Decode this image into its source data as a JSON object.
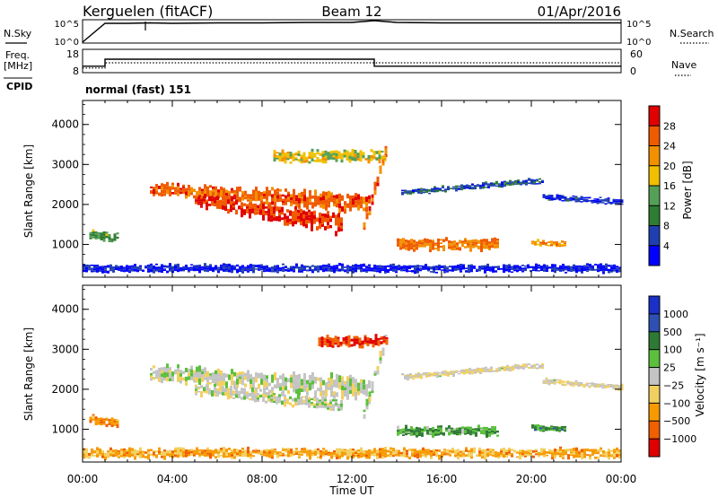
{
  "header": {
    "station": "Kerguelen (fitACF)",
    "beam": "Beam 12",
    "date": "01/Apr/2016"
  },
  "top_panels": {
    "nsky_label": "N.Sky",
    "nsearch_label": "N.Search",
    "freq_label_1": "Freq.",
    "freq_label_2": "[MHz]",
    "nave_label": "Nave",
    "cpid_label": "CPID",
    "cpid_value": "normal (fast) 151",
    "nsky_ticks": [
      "10^5",
      "10^0"
    ],
    "nsearch_ticks": [
      "10^5",
      "10^0"
    ],
    "freq_ticks": [
      "18",
      "8"
    ],
    "nave_ticks": [
      "60",
      "0"
    ]
  },
  "colors": {
    "power": [
      "#0000ff",
      "#1f3fb0",
      "#2e7d32",
      "#55a057",
      "#f0c000",
      "#f39000",
      "#f05a00",
      "#e00000"
    ],
    "velocity": [
      "#e00000",
      "#f06000",
      "#f79a00",
      "#f2d060",
      "#c4c4c4",
      "#5cc03c",
      "#2e7a34",
      "#2e50b0",
      "#1a30c8"
    ]
  },
  "chart_data": [
    {
      "type": "line",
      "panel": "noise",
      "series": [
        {
          "name": "N.Sky",
          "style": "solid"
        },
        {
          "name": "N.Search",
          "style": "dotted"
        }
      ],
      "x": [
        0,
        1,
        2,
        3,
        4,
        6,
        8,
        10,
        12,
        13,
        14,
        16,
        18,
        20,
        22,
        24
      ],
      "values_sky": [
        0.0,
        4.2,
        4.2,
        4.3,
        4.2,
        4.3,
        4.3,
        4.4,
        4.4,
        4.8,
        4.4,
        4.3,
        4.3,
        4.3,
        4.3,
        4.3
      ],
      "ylim": [
        0,
        5
      ]
    },
    {
      "type": "line",
      "panel": "freq-nave",
      "freq_x": [
        0,
        1,
        1,
        13,
        13,
        24
      ],
      "freq_y": [
        10.5,
        10.5,
        13.6,
        13.6,
        10.5,
        10.5
      ],
      "nave_x": [
        0,
        1,
        1,
        24
      ],
      "nave_y": [
        10,
        10,
        24,
        24
      ],
      "freq_ylim": [
        8,
        18
      ],
      "nave_ylim": [
        0,
        60
      ]
    },
    {
      "type": "heatmap",
      "title": "Power",
      "ylabel": "Slant Range [km]",
      "colorbar_label": "Power [dB]",
      "colorbar_ticks": [
        "4",
        "8",
        "12",
        "16",
        "20",
        "24",
        "28"
      ],
      "xlim": [
        0,
        24
      ],
      "ylim": [
        180,
        4600
      ],
      "yticks": [
        1000,
        2000,
        3000,
        4000
      ],
      "regions": [
        {
          "x0": 3.0,
          "x1": 12.8,
          "y_start": 2400,
          "y_end": 2000,
          "thick_start": 300,
          "thick_end": 500,
          "level": 0.8
        },
        {
          "x0": 5.0,
          "x1": 11.5,
          "y_start": 2100,
          "y_end": 1500,
          "thick_start": 300,
          "thick_end": 500,
          "level": 0.9
        },
        {
          "x0": 12.5,
          "x1": 13.5,
          "y_start": 1400,
          "y_end": 3400,
          "thick_start": 300,
          "thick_end": 300,
          "level": 0.8
        },
        {
          "x0": 14.0,
          "x1": 18.5,
          "y_start": 1000,
          "y_end": 1000,
          "thick_start": 300,
          "thick_end": 300,
          "level": 0.75
        },
        {
          "x0": 14.2,
          "x1": 20.5,
          "y_start": 2300,
          "y_end": 2600,
          "thick_start": 150,
          "thick_end": 150,
          "level": 0.2
        },
        {
          "x0": 20.5,
          "x1": 24.0,
          "y_start": 2200,
          "y_end": 2050,
          "thick_start": 150,
          "thick_end": 150,
          "level": 0.15
        },
        {
          "x0": 8.5,
          "x1": 13.5,
          "y_start": 3200,
          "y_end": 3200,
          "thick_start": 300,
          "thick_end": 300,
          "level": 0.55
        },
        {
          "x0": 0.3,
          "x1": 1.6,
          "y_start": 1250,
          "y_end": 1150,
          "thick_start": 250,
          "thick_end": 250,
          "level": 0.4
        },
        {
          "x0": 0.0,
          "x1": 24.0,
          "y_start": 400,
          "y_end": 400,
          "thick_start": 200,
          "thick_end": 200,
          "level": 0.1
        },
        {
          "x0": 20.0,
          "x1": 21.5,
          "y_start": 1050,
          "y_end": 1000,
          "thick_start": 150,
          "thick_end": 150,
          "level": 0.7
        }
      ]
    },
    {
      "type": "heatmap",
      "title": "Velocity",
      "ylabel": "Slant Range [km]",
      "xlabel": "Time UT",
      "colorbar_label": "Velocity [m s⁻¹]",
      "colorbar_ticks": [
        "1000",
        "500",
        "100",
        "25",
        "−25",
        "−100",
        "−500",
        "−1000"
      ],
      "xlim": [
        0,
        24
      ],
      "xticks": [
        "00:00",
        "04:00",
        "08:00",
        "12:00",
        "16:00",
        "20:00",
        "00:00"
      ],
      "ylim": [
        180,
        4600
      ],
      "yticks": [
        1000,
        2000,
        3000,
        4000
      ],
      "regions": [
        {
          "x0": 3.0,
          "x1": 12.8,
          "y_start": 2400,
          "y_end": 2000,
          "thick_start": 400,
          "thick_end": 600,
          "level": 0.5
        },
        {
          "x0": 5.0,
          "x1": 11.5,
          "y_start": 2000,
          "y_end": 1600,
          "thick_start": 300,
          "thick_end": 300,
          "level": 0.5
        },
        {
          "x0": 12.5,
          "x1": 13.5,
          "y_start": 1400,
          "y_end": 3300,
          "thick_start": 300,
          "thick_end": 300,
          "level": 0.5
        },
        {
          "x0": 10.5,
          "x1": 13.5,
          "y_start": 3200,
          "y_end": 3200,
          "thick_start": 300,
          "thick_end": 300,
          "level": 0.1
        },
        {
          "x0": 14.0,
          "x1": 18.5,
          "y_start": 950,
          "y_end": 950,
          "thick_start": 250,
          "thick_end": 250,
          "level": 0.65
        },
        {
          "x0": 14.2,
          "x1": 20.5,
          "y_start": 2300,
          "y_end": 2600,
          "thick_start": 150,
          "thick_end": 150,
          "level": 0.45
        },
        {
          "x0": 20.5,
          "x1": 24.0,
          "y_start": 2200,
          "y_end": 2050,
          "thick_start": 150,
          "thick_end": 150,
          "level": 0.45
        },
        {
          "x0": 0.3,
          "x1": 1.6,
          "y_start": 1250,
          "y_end": 1150,
          "thick_start": 250,
          "thick_end": 250,
          "level": 0.25
        },
        {
          "x0": 0.0,
          "x1": 24.0,
          "y_start": 400,
          "y_end": 400,
          "thick_start": 250,
          "thick_end": 250,
          "level": 0.3
        },
        {
          "x0": 20.0,
          "x1": 21.5,
          "y_start": 1050,
          "y_end": 1000,
          "thick_start": 150,
          "thick_end": 150,
          "level": 0.7
        }
      ]
    }
  ]
}
